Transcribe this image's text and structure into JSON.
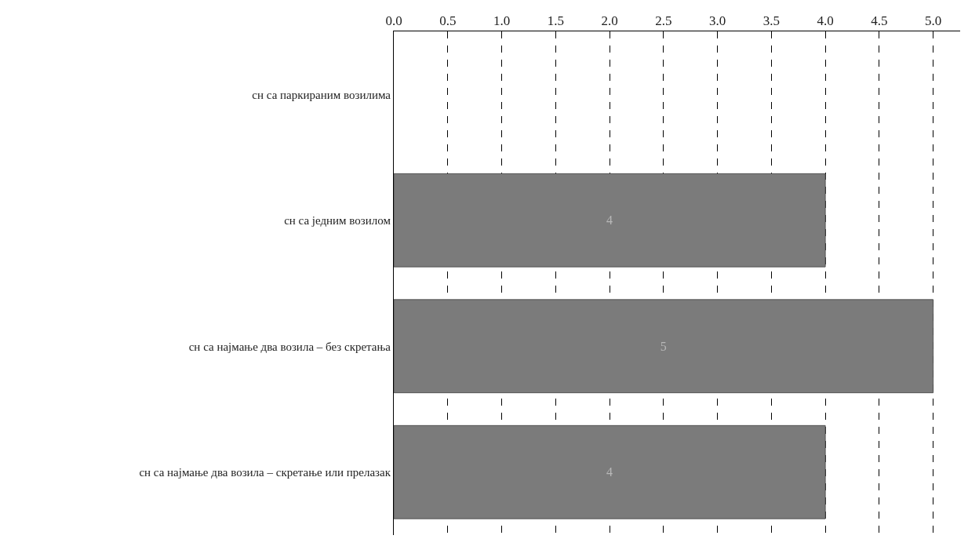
{
  "chart_data": {
    "type": "bar",
    "orientation": "horizontal",
    "categories": [
      "сн са паркираним возилима",
      "сн са једним возилом",
      "сн са најмање два возила – без скретања",
      "сн са најмање два возила – скретање или прелазак"
    ],
    "values": [
      null,
      4,
      5,
      4
    ],
    "color": "#7b7b7b",
    "data_labels": true,
    "xlim": [
      0,
      5.25
    ],
    "xticks": [
      {
        "value": 0,
        "label": "0.0"
      },
      {
        "value": 0.5,
        "label": "0.5"
      },
      {
        "value": 1,
        "label": "1.0"
      },
      {
        "value": 1.5,
        "label": "1.5"
      },
      {
        "value": 2,
        "label": "2.0"
      },
      {
        "value": 2.5,
        "label": "2.5"
      },
      {
        "value": 3,
        "label": "3.0"
      },
      {
        "value": 3.5,
        "label": "3.5"
      },
      {
        "value": 4,
        "label": "4.0"
      },
      {
        "value": 4.5,
        "label": "4.5"
      },
      {
        "value": 5,
        "label": "5.0"
      }
    ],
    "grid": "x"
  }
}
